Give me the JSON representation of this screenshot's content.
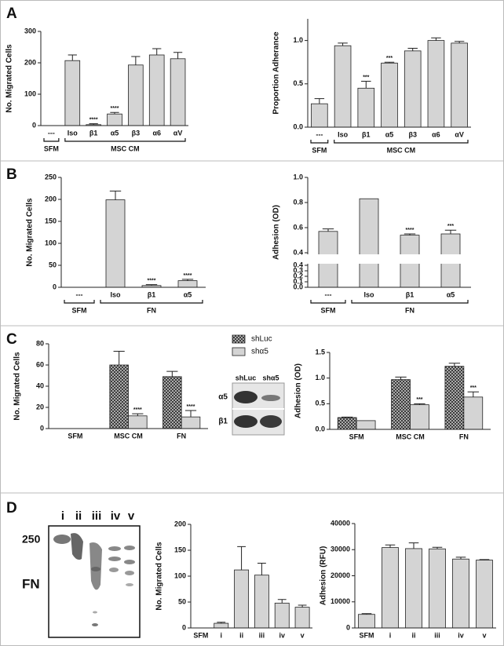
{
  "panel_labels": [
    "A",
    "B",
    "C",
    "D"
  ],
  "blots": {
    "c": {
      "lanes": [
        "shLuc",
        "shα5"
      ],
      "rows": [
        "α5",
        "β1"
      ]
    },
    "d": {
      "lanes": [
        "i",
        "ii",
        "iii",
        "iv",
        "v"
      ],
      "marker": "250",
      "label": "FN"
    }
  },
  "chart_data": [
    {
      "type": "bar",
      "y_label": "No. Migrated Cells",
      "color": "#d4d4d4",
      "categories": [
        "---",
        "Iso",
        "β1",
        "α5",
        "β3",
        "α6",
        "αV"
      ],
      "values": [
        0,
        207,
        3,
        37,
        193,
        225,
        213
      ],
      "errors": [
        0,
        18,
        3,
        5,
        27,
        20,
        20
      ],
      "significance": [
        null,
        null,
        "****",
        "****",
        null,
        null,
        null
      ],
      "groups": [
        {
          "label": "SFM",
          "span": 1
        },
        {
          "label": "MSC CM",
          "span": 6
        }
      ],
      "ylim": [
        0,
        300
      ],
      "yticks": [
        0,
        100,
        200,
        300
      ]
    },
    {
      "type": "bar",
      "y_label": "Proportion  Adherance",
      "color": "#d4d4d4",
      "categories": [
        "---",
        "Iso",
        "β1",
        "α5",
        "β3",
        "α6",
        "αV"
      ],
      "values": [
        0.27,
        0.94,
        0.45,
        0.74,
        0.88,
        1.0,
        0.97
      ],
      "errors": [
        0.06,
        0.03,
        0.08,
        0.01,
        0.03,
        0.03,
        0.02
      ],
      "significance": [
        null,
        null,
        "***",
        "***",
        null,
        null,
        null
      ],
      "groups": [
        {
          "label": "SFM",
          "span": 1
        },
        {
          "label": "MSC CM",
          "span": 6
        }
      ],
      "ylim": [
        0,
        1.25
      ],
      "yticks": [
        {
          "value": 0,
          "label": "0.0"
        },
        {
          "value": 0.5,
          "label": "0.5"
        },
        {
          "value": 1,
          "label": "1.0"
        }
      ]
    },
    {
      "type": "bar",
      "y_label": "No. Migrated Cells",
      "color": "#d4d4d4",
      "categories": [
        "---",
        "Iso",
        "β1",
        "α5"
      ],
      "values": [
        0,
        199,
        4,
        15
      ],
      "errors": [
        0,
        20,
        2,
        3
      ],
      "significance": [
        null,
        null,
        "****",
        "****"
      ],
      "groups": [
        {
          "label": "SFM",
          "span": 1
        },
        {
          "label": "FN",
          "span": 3
        }
      ],
      "ylim": [
        0,
        250
      ],
      "yticks": [
        0,
        50,
        100,
        150,
        200,
        250
      ]
    },
    {
      "type": "bar",
      "y_label": "Adhesion  (OD)",
      "color": "#d4d4d4",
      "categories": [
        "---",
        "Iso",
        "β1",
        "α5"
      ],
      "values": [
        0.57,
        0.83,
        0.54,
        0.55
      ],
      "errors": [
        0.02,
        0,
        0.01,
        0.03
      ],
      "significance": [
        null,
        null,
        "****",
        "***"
      ],
      "groups": [
        {
          "label": "SFM",
          "span": 1
        },
        {
          "label": "FN",
          "span": 3
        }
      ],
      "y_segments": [
        {
          "ylim": [
            0,
            0.4
          ],
          "yticks": [
            {
              "value": 0,
              "label": "0.0"
            },
            {
              "value": 0.1,
              "label": "0.1"
            },
            {
              "value": 0.2,
              "label": "0.2"
            },
            {
              "value": 0.3,
              "label": "0.3"
            },
            {
              "value": 0.4,
              "label": "0.4"
            }
          ]
        },
        {
          "ylim": [
            0.4,
            1.0
          ],
          "yticks": [
            {
              "value": 0.4,
              "label": "0.4"
            },
            {
              "value": 0.6,
              "label": "0.6"
            },
            {
              "value": 0.8,
              "label": "0.8"
            },
            {
              "value": 1.0,
              "label": "1.0"
            }
          ]
        }
      ]
    },
    {
      "type": "bar",
      "y_label": "No.  Migrated Cells",
      "legend": "outside",
      "categories": [
        "SFM",
        "MSC CM",
        "FN"
      ],
      "series": [
        {
          "name": "shLuc",
          "color": "#555555",
          "pattern": "crosshatch",
          "values": [
            0,
            60,
            49
          ],
          "errors": [
            0,
            13,
            5
          ],
          "significance": [
            null,
            null,
            null
          ]
        },
        {
          "name": "shα5",
          "color": "#d4d4d4",
          "values": [
            0,
            12,
            11
          ],
          "errors": [
            0,
            2,
            6
          ],
          "significance": [
            null,
            "****",
            "****"
          ]
        }
      ],
      "ylim": [
        0,
        80
      ],
      "yticks": [
        0,
        20,
        40,
        60,
        80
      ]
    },
    {
      "type": "bar",
      "y_label": "Adhesion (OD)",
      "categories": [
        "SFM",
        "MSC CM",
        "FN"
      ],
      "series": [
        {
          "name": "shLuc",
          "color": "#555555",
          "pattern": "crosshatch",
          "values": [
            0.23,
            0.97,
            1.23
          ],
          "errors": [
            0.01,
            0.05,
            0.06
          ],
          "significance": [
            null,
            null,
            null
          ]
        },
        {
          "name": "shα5",
          "color": "#d4d4d4",
          "values": [
            0.17,
            0.48,
            0.63
          ],
          "errors": [
            0,
            0.02,
            0.1
          ],
          "significance": [
            null,
            "***",
            "***"
          ]
        }
      ],
      "ylim": [
        0,
        1.5
      ],
      "yticks": [
        {
          "value": 0,
          "label": "0.0"
        },
        {
          "value": 0.5,
          "label": "0.5"
        },
        {
          "value": 1,
          "label": "1.0"
        },
        {
          "value": 1.5,
          "label": "1.5"
        }
      ]
    },
    {
      "type": "bar",
      "y_label": "No. Migrated Cells",
      "color": "#d4d4d4",
      "categories": [
        "SFM",
        "i",
        "ii",
        "iii",
        "iv",
        "v"
      ],
      "values": [
        0,
        9,
        112,
        102,
        48,
        40
      ],
      "errors": [
        0,
        2,
        45,
        23,
        7,
        4
      ],
      "ylim": [
        0,
        200
      ],
      "yticks": [
        0,
        50,
        100,
        150,
        200
      ]
    },
    {
      "type": "bar",
      "y_label": "Adhesion (RFU)",
      "color": "#d4d4d4",
      "categories": [
        "SFM",
        "i",
        "ii",
        "iii",
        "iv",
        "v"
      ],
      "values": [
        5200,
        30800,
        30400,
        30300,
        26400,
        26000
      ],
      "errors": [
        300,
        1000,
        2200,
        600,
        700,
        200
      ],
      "ylim": [
        0,
        40000
      ],
      "yticks": [
        0,
        10000,
        20000,
        30000,
        40000
      ]
    }
  ]
}
